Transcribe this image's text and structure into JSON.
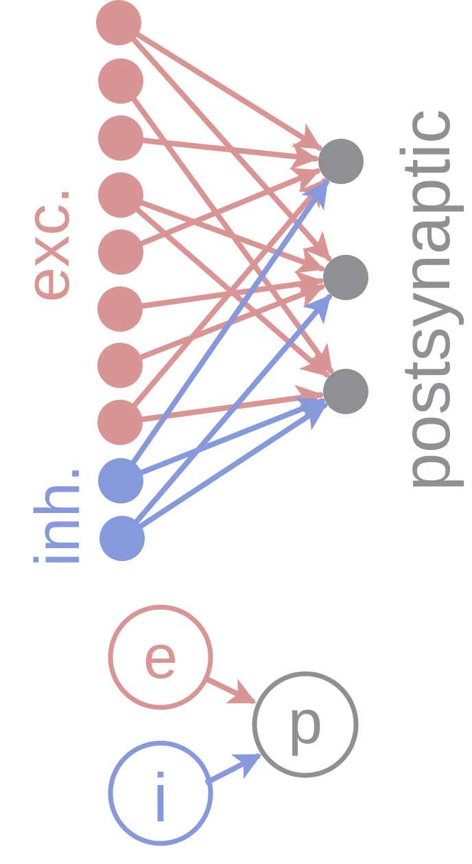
{
  "labels": {
    "excitatory": "exc.",
    "inhibitory": "inh.",
    "postsynaptic": "postsynaptic"
  },
  "legend": {
    "excitatory_symbol": "e",
    "inhibitory_symbol": "i",
    "postsynaptic_symbol": "p"
  },
  "colors": {
    "excitatory": "#d99594",
    "inhibitory": "#8699dc",
    "postsynaptic": "#8f9093"
  },
  "network": {
    "excitatory_count": 8,
    "inhibitory_count": 2,
    "postsynaptic_count": 3,
    "excitatory_connections": [
      [
        0,
        0
      ],
      [
        0,
        1
      ],
      [
        1,
        2
      ],
      [
        2,
        0
      ],
      [
        3,
        1
      ],
      [
        3,
        2
      ],
      [
        4,
        0
      ],
      [
        5,
        1
      ],
      [
        6,
        1
      ],
      [
        7,
        0
      ],
      [
        7,
        2
      ]
    ],
    "inhibitory_connections": [
      [
        0,
        0
      ],
      [
        0,
        2
      ],
      [
        1,
        1
      ],
      [
        1,
        2
      ]
    ]
  }
}
